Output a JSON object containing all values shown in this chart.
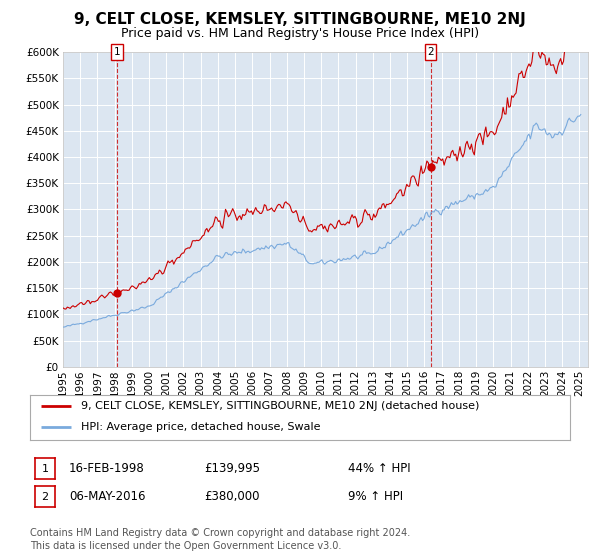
{
  "title": "9, CELT CLOSE, KEMSLEY, SITTINGBOURNE, ME10 2NJ",
  "subtitle": "Price paid vs. HM Land Registry's House Price Index (HPI)",
  "legend_property": "9, CELT CLOSE, KEMSLEY, SITTINGBOURNE, ME10 2NJ (detached house)",
  "legend_hpi": "HPI: Average price, detached house, Swale",
  "annotation1_date": "16-FEB-1998",
  "annotation1_price": "£139,995",
  "annotation1_hpi": "44% ↑ HPI",
  "annotation2_date": "06-MAY-2016",
  "annotation2_price": "£380,000",
  "annotation2_hpi": "9% ↑ HPI",
  "footer": "Contains HM Land Registry data © Crown copyright and database right 2024.\nThis data is licensed under the Open Government Licence v3.0.",
  "property_color": "#cc0000",
  "hpi_color": "#7aaadd",
  "background_color": "#dce6f1",
  "ylim": [
    0,
    600000
  ],
  "yticks": [
    0,
    50000,
    100000,
    150000,
    200000,
    250000,
    300000,
    350000,
    400000,
    450000,
    500000,
    550000,
    600000
  ],
  "sale1_year": 1998.12,
  "sale1_price": 139995,
  "sale2_year": 2016.35,
  "sale2_price": 380000,
  "title_fontsize": 11,
  "subtitle_fontsize": 9,
  "axis_fontsize": 7.5,
  "legend_fontsize": 8,
  "footer_fontsize": 7
}
